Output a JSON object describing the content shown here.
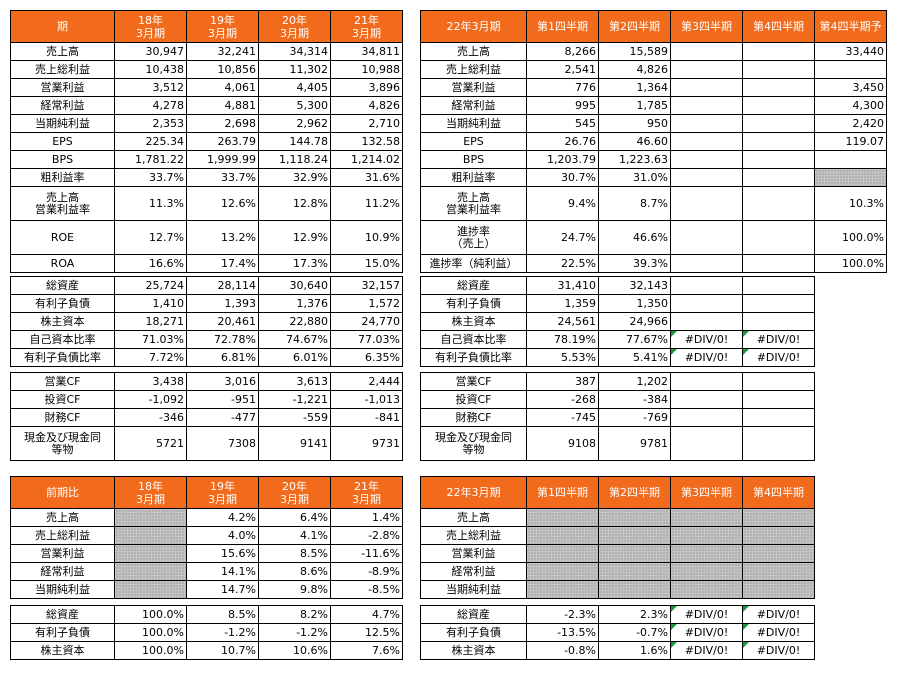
{
  "t1": {
    "header": [
      "期",
      "18年\n3月期",
      "19年\n3月期",
      "20年\n3月期",
      "21年\n3月期"
    ],
    "rows": [
      [
        "売上高",
        "30,947",
        "32,241",
        "34,314",
        "34,811"
      ],
      [
        "売上総利益",
        "10,438",
        "10,856",
        "11,302",
        "10,988"
      ],
      [
        "営業利益",
        "3,512",
        "4,061",
        "4,405",
        "3,896"
      ],
      [
        "経常利益",
        "4,278",
        "4,881",
        "5,300",
        "4,826"
      ],
      [
        "当期純利益",
        "2,353",
        "2,698",
        "2,962",
        "2,710"
      ],
      [
        "EPS",
        "225.34",
        "263.79",
        "144.78",
        "132.58"
      ],
      [
        "BPS",
        "1,781.22",
        "1,999.99",
        "1,118.24",
        "1,214.02"
      ],
      [
        "粗利益率",
        "33.7%",
        "33.7%",
        "32.9%",
        "31.6%"
      ],
      [
        "売上高\n営業利益率",
        "11.3%",
        "12.6%",
        "12.8%",
        "11.2%"
      ],
      [
        "ROE",
        "12.7%",
        "13.2%",
        "12.9%",
        "10.9%"
      ],
      [
        "ROA",
        "16.6%",
        "17.4%",
        "17.3%",
        "15.0%"
      ]
    ]
  },
  "t2": {
    "header": [
      "22年3月期",
      "第1四半期",
      "第2四半期",
      "第3四半期",
      "第4四半期",
      "第4四半期予"
    ],
    "rows": [
      [
        "売上高",
        "8,266",
        "15,589",
        "",
        "",
        "33,440"
      ],
      [
        "売上総利益",
        "2,541",
        "4,826",
        "",
        "",
        ""
      ],
      [
        "営業利益",
        "776",
        "1,364",
        "",
        "",
        "3,450"
      ],
      [
        "経常利益",
        "995",
        "1,785",
        "",
        "",
        "4,300"
      ],
      [
        "当期純利益",
        "545",
        "950",
        "",
        "",
        "2,420"
      ],
      [
        "EPS",
        "26.76",
        "46.60",
        "",
        "",
        "119.07"
      ],
      [
        "BPS",
        "1,203.79",
        "1,223.63",
        "",
        "",
        ""
      ],
      [
        "粗利益率",
        "30.7%",
        "31.0%",
        "",
        "",
        ""
      ],
      [
        "売上高\n営業利益率",
        "9.4%",
        "8.7%",
        "",
        "",
        "10.3%"
      ],
      [
        "進捗率\n（売上）",
        "24.7%",
        "46.6%",
        "",
        "",
        "100.0%"
      ],
      [
        "進捗率（純利益）",
        "22.5%",
        "39.3%",
        "",
        "",
        "100.0%"
      ]
    ]
  },
  "t3": {
    "rows": [
      [
        "総資産",
        "25,724",
        "28,114",
        "30,640",
        "32,157"
      ],
      [
        "有利子負債",
        "1,410",
        "1,393",
        "1,376",
        "1,572"
      ],
      [
        "株主資本",
        "18,271",
        "20,461",
        "22,880",
        "24,770"
      ],
      [
        "自己資本比率",
        "71.03%",
        "72.78%",
        "74.67%",
        "77.03%"
      ],
      [
        "有利子負債比率",
        "7.72%",
        "6.81%",
        "6.01%",
        "6.35%"
      ]
    ]
  },
  "t4": {
    "rows": [
      [
        "総資産",
        "31,410",
        "32,143",
        "",
        ""
      ],
      [
        "有利子負債",
        "1,359",
        "1,350",
        "",
        ""
      ],
      [
        "株主資本",
        "24,561",
        "24,966",
        "",
        ""
      ],
      [
        "自己資本比率",
        "78.19%",
        "77.67%",
        "#DIV/0!",
        "#DIV/0!"
      ],
      [
        "有利子負債比率",
        "5.53%",
        "5.41%",
        "#DIV/0!",
        "#DIV/0!"
      ]
    ]
  },
  "t5": {
    "rows": [
      [
        "営業CF",
        "3,438",
        "3,016",
        "3,613",
        "2,444"
      ],
      [
        "投資CF",
        "-1,092",
        "-951",
        "-1,221",
        "-1,013"
      ],
      [
        "財務CF",
        "-346",
        "-477",
        "-559",
        "-841"
      ],
      [
        "現金及び現金同\n等物",
        "5721",
        "7308",
        "9141",
        "9731"
      ]
    ]
  },
  "t6": {
    "rows": [
      [
        "営業CF",
        "387",
        "1,202",
        "",
        ""
      ],
      [
        "投資CF",
        "-268",
        "-384",
        "",
        ""
      ],
      [
        "財務CF",
        "-745",
        "-769",
        "",
        ""
      ],
      [
        "現金及び現金同\n等物",
        "9108",
        "9781",
        "",
        ""
      ]
    ]
  },
  "t7": {
    "header": [
      "前期比",
      "18年\n3月期",
      "19年\n3月期",
      "20年\n3月期",
      "21年\n3月期"
    ],
    "rows": [
      [
        "売上高",
        "",
        "4.2%",
        "6.4%",
        "1.4%"
      ],
      [
        "売上総利益",
        "",
        "4.0%",
        "4.1%",
        "-2.8%"
      ],
      [
        "営業利益",
        "",
        "15.6%",
        "8.5%",
        "-11.6%"
      ],
      [
        "経常利益",
        "",
        "14.1%",
        "8.6%",
        "-8.9%"
      ],
      [
        "当期純利益",
        "",
        "14.7%",
        "9.8%",
        "-8.5%"
      ]
    ]
  },
  "t8": {
    "header": [
      "22年3月期",
      "第1四半期",
      "第2四半期",
      "第3四半期",
      "第4四半期"
    ],
    "rows": [
      [
        "売上高",
        "",
        "",
        "",
        ""
      ],
      [
        "売上総利益",
        "",
        "",
        "",
        ""
      ],
      [
        "営業利益",
        "",
        "",
        "",
        ""
      ],
      [
        "経常利益",
        "",
        "",
        "",
        ""
      ],
      [
        "当期純利益",
        "",
        "",
        "",
        ""
      ]
    ]
  },
  "t9": {
    "rows": [
      [
        "総資産",
        "100.0%",
        "8.5%",
        "8.2%",
        "4.7%"
      ],
      [
        "有利子負債",
        "100.0%",
        "-1.2%",
        "-1.2%",
        "12.5%"
      ],
      [
        "株主資本",
        "100.0%",
        "10.7%",
        "10.6%",
        "7.6%"
      ]
    ]
  },
  "t10": {
    "rows": [
      [
        "総資産",
        "-2.3%",
        "2.3%",
        "#DIV/0!",
        "#DIV/0!"
      ],
      [
        "有利子負債",
        "-13.5%",
        "-0.7%",
        "#DIV/0!",
        "#DIV/0!"
      ],
      [
        "株主資本",
        "-0.8%",
        "1.6%",
        "#DIV/0!",
        "#DIV/0!"
      ]
    ]
  }
}
